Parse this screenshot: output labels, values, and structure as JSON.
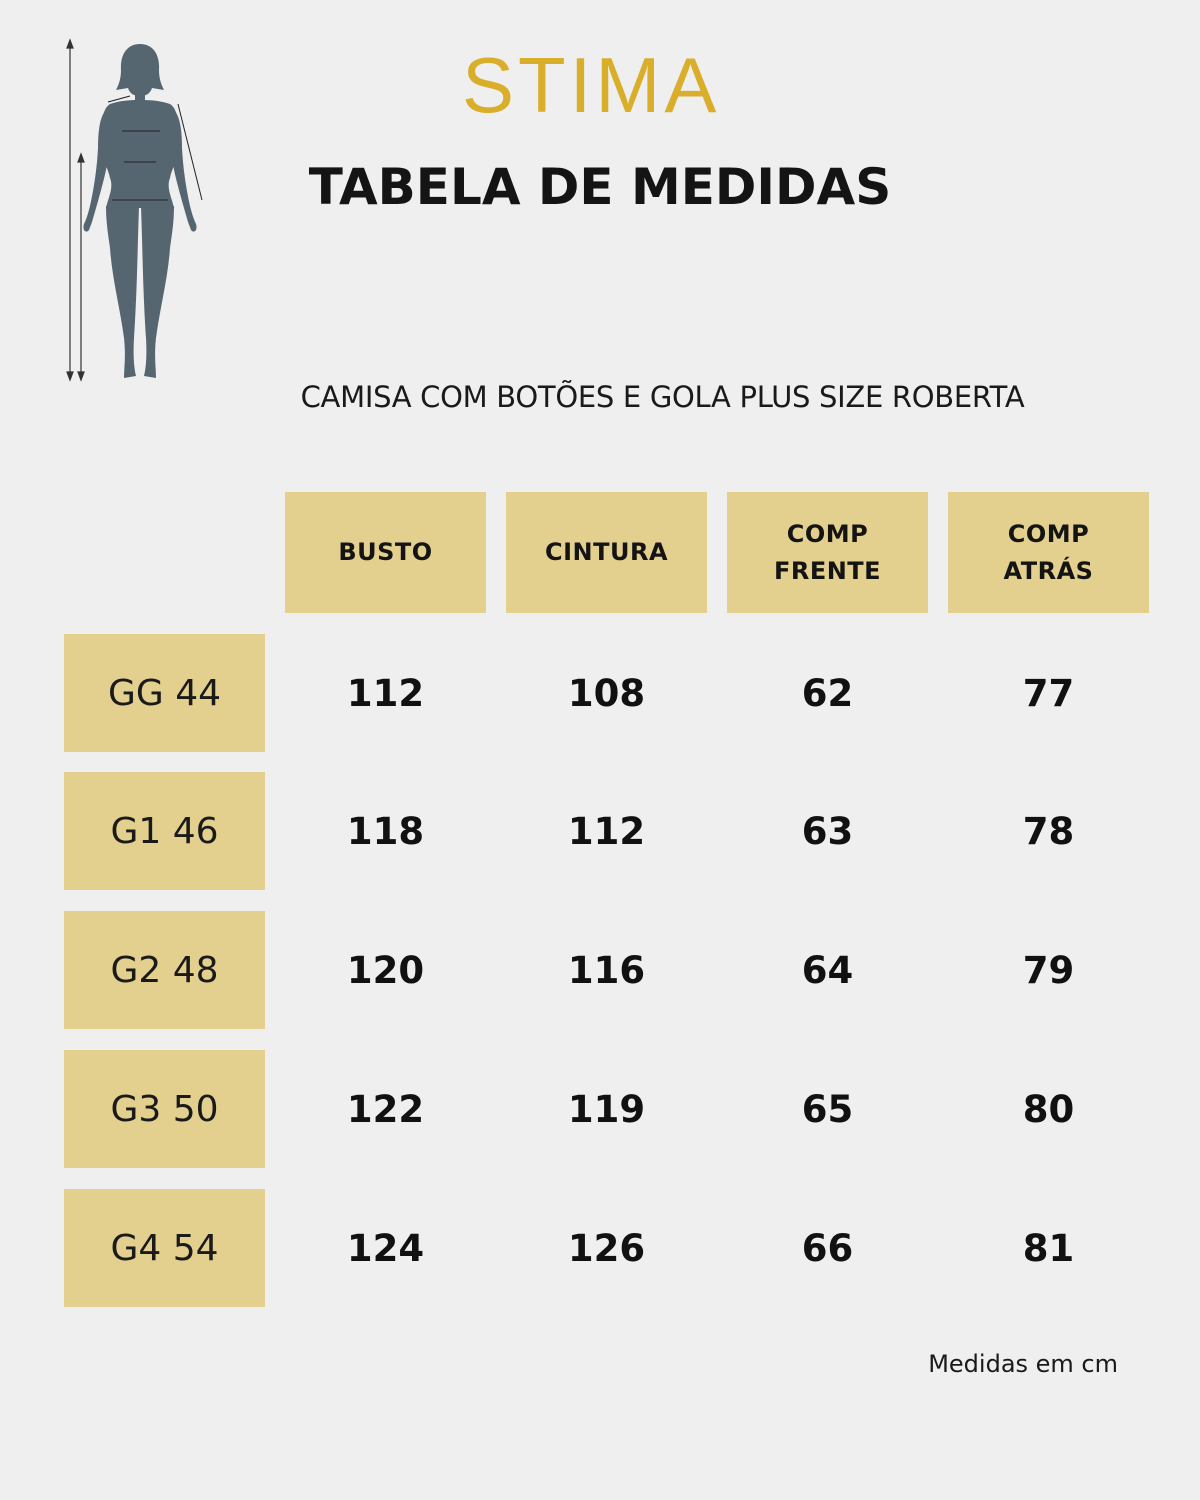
{
  "brand": {
    "logo_text": "STIMA",
    "accent_color": "#d9ae2b"
  },
  "title": "TABELA DE MEDIDAS",
  "product_name": "CAMISA COM BOTÕES E GOLA PLUS SIZE ROBERTA",
  "table": {
    "cell_color": "#e3d08e",
    "headers": [
      "BUSTO",
      "CINTURA",
      "COMP\nFRENTE",
      "COMP\nATRÁS"
    ],
    "rows": [
      {
        "size": "GG 44",
        "values": [
          "112",
          "108",
          "62",
          "77"
        ]
      },
      {
        "size": "G1 46",
        "values": [
          "118",
          "112",
          "63",
          "78"
        ]
      },
      {
        "size": "G2 48",
        "values": [
          "120",
          "116",
          "64",
          "79"
        ]
      },
      {
        "size": "G3 50",
        "values": [
          "122",
          "119",
          "65",
          "80"
        ]
      },
      {
        "size": "G4 54",
        "values": [
          "124",
          "126",
          "66",
          "81"
        ]
      }
    ]
  },
  "footnote": "Medidas em cm",
  "illustration": {
    "icon": "body-measurement-figure-icon",
    "figure_color": "#566670"
  }
}
